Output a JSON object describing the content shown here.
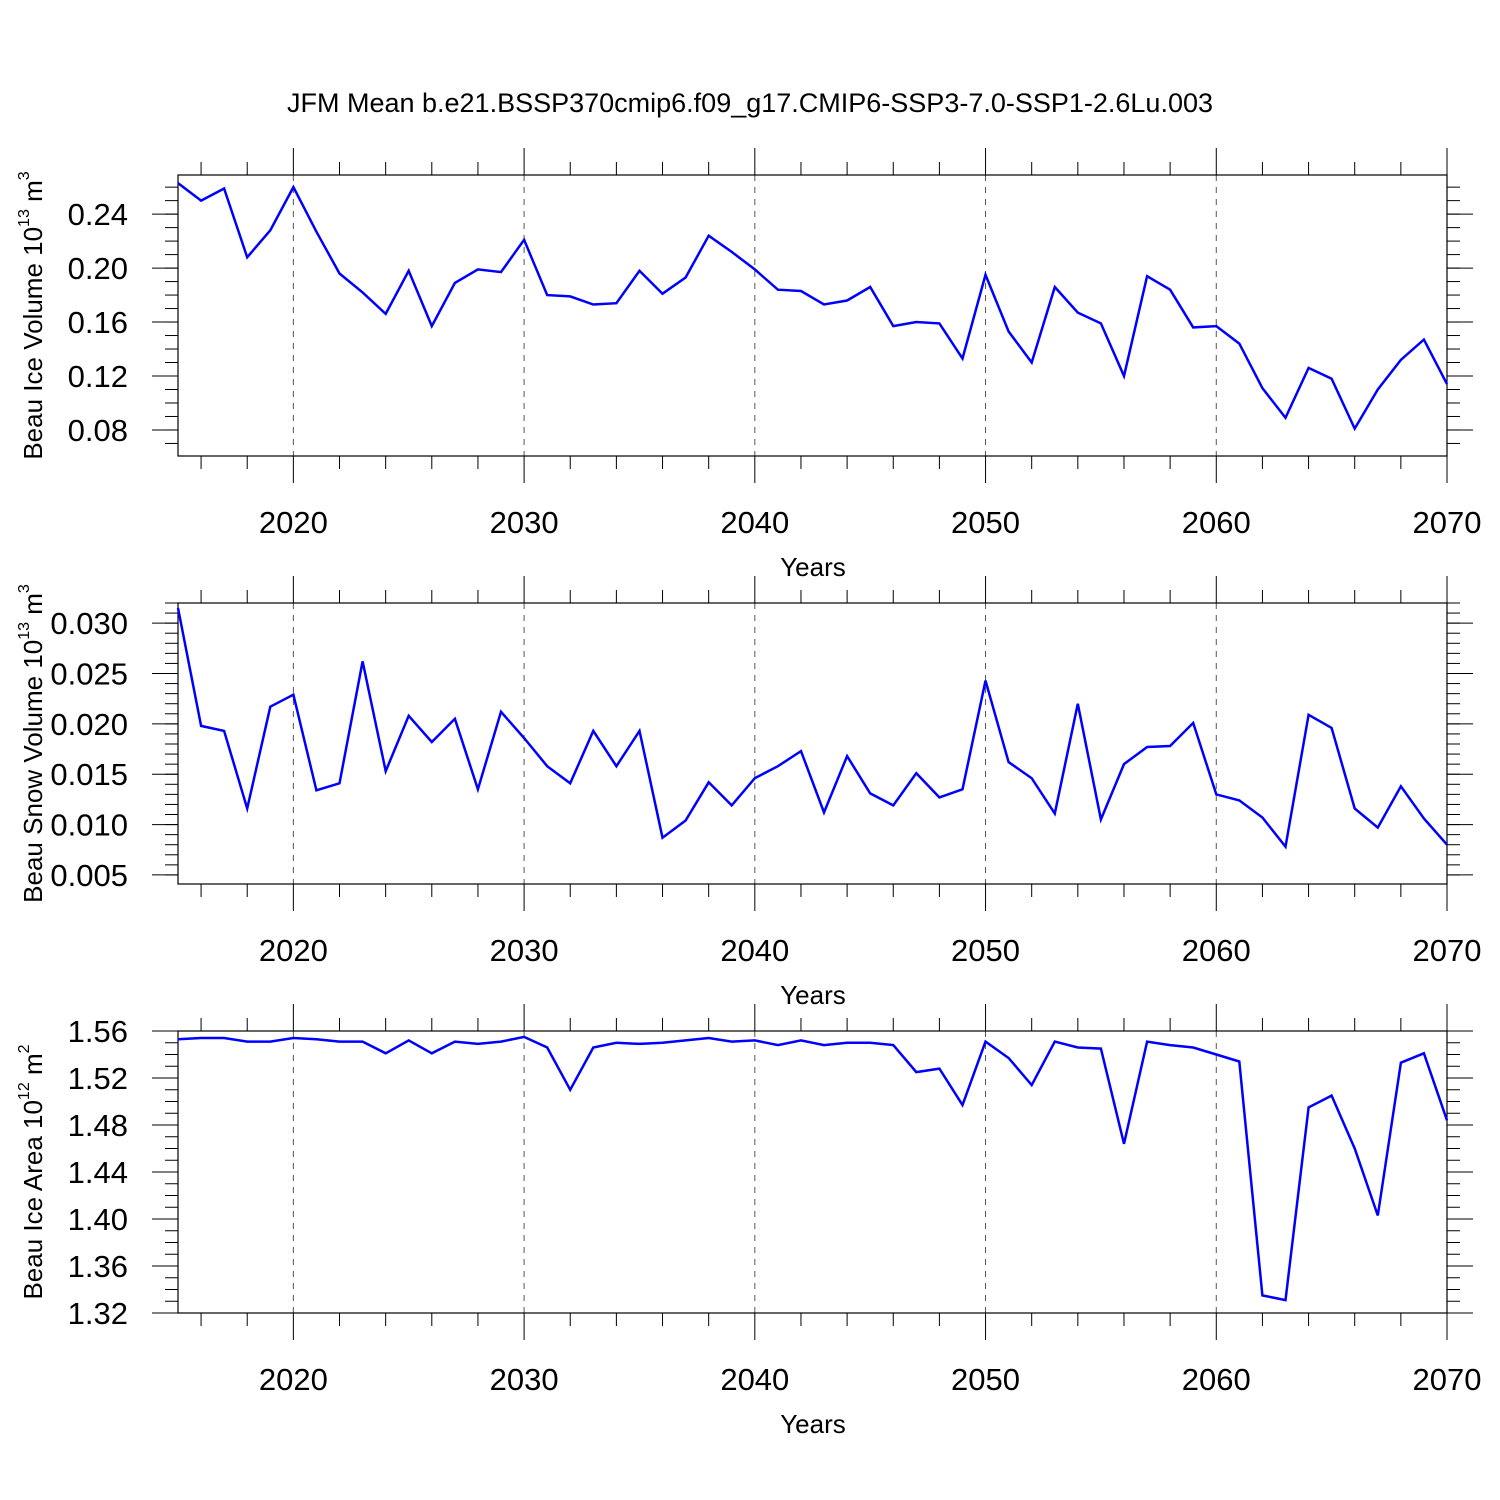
{
  "title": "JFM Mean b.e21.BSSP370cmip6.f09_g17.CMIP6-SSP3-7.0-SSP1-2.6Lu.003",
  "line_color": "#0000ff",
  "chart_data": [
    {
      "type": "line",
      "ylabel": "Beau Ice Volume 10",
      "ylabel_sup": "13",
      "ylabel_unit": " m",
      "ylabel_unit_sup": "3",
      "xlabel": "Years",
      "xlim": [
        2015,
        2070
      ],
      "ylim": [
        0.0607,
        0.269
      ],
      "xticks": [
        "2020",
        "2030",
        "2040",
        "2050",
        "2060",
        "2070"
      ],
      "yticks": [
        "0.08",
        "0.12",
        "0.16",
        "0.20",
        "0.24"
      ],
      "ytick_values": [
        0.08,
        0.12,
        0.16,
        0.2,
        0.24
      ],
      "yminor_step": 0.01,
      "grid": "dashed vertical at major x ticks",
      "x_start": 2015,
      "values": [
        0.263,
        0.25,
        0.259,
        0.208,
        0.228,
        0.26,
        0.227,
        0.196,
        0.182,
        0.166,
        0.198,
        0.157,
        0.189,
        0.199,
        0.197,
        0.221,
        0.18,
        0.179,
        0.173,
        0.174,
        0.198,
        0.181,
        0.193,
        0.224,
        0.212,
        0.199,
        0.184,
        0.183,
        0.173,
        0.176,
        0.186,
        0.157,
        0.16,
        0.159,
        0.133,
        0.195,
        0.153,
        0.13,
        0.186,
        0.167,
        0.159,
        0.12,
        0.194,
        0.184,
        0.156,
        0.157,
        0.144,
        0.111,
        0.089,
        0.126,
        0.118,
        0.081,
        0.11,
        0.132,
        0.147,
        0.114
      ]
    },
    {
      "type": "line",
      "ylabel": "Beau Snow Volume 10",
      "ylabel_sup": "13",
      "ylabel_unit": " m",
      "ylabel_unit_sup": "3",
      "xlabel": "Years",
      "xlim": [
        2015,
        2070
      ],
      "ylim": [
        0.0041,
        0.032
      ],
      "xticks": [
        "2020",
        "2030",
        "2040",
        "2050",
        "2060",
        "2070"
      ],
      "yticks": [
        "0.005",
        "0.010",
        "0.015",
        "0.020",
        "0.025",
        "0.030"
      ],
      "ytick_values": [
        0.005,
        0.01,
        0.015,
        0.02,
        0.025,
        0.03
      ],
      "yminor_step": 0.001,
      "grid": "dashed vertical at major x ticks",
      "x_start": 2015,
      "values": [
        0.0315,
        0.0198,
        0.0193,
        0.0116,
        0.0217,
        0.0229,
        0.0134,
        0.0141,
        0.0262,
        0.0153,
        0.0208,
        0.0182,
        0.0205,
        0.0135,
        0.0212,
        0.0186,
        0.0158,
        0.0141,
        0.0193,
        0.0158,
        0.0193,
        0.0087,
        0.0104,
        0.0142,
        0.0119,
        0.0146,
        0.0158,
        0.0173,
        0.0112,
        0.0168,
        0.0131,
        0.0119,
        0.0151,
        0.0127,
        0.0135,
        0.0243,
        0.0162,
        0.0146,
        0.0111,
        0.022,
        0.0105,
        0.016,
        0.0177,
        0.0178,
        0.0201,
        0.013,
        0.0124,
        0.0107,
        0.0078,
        0.0209,
        0.0196,
        0.0116,
        0.0097,
        0.0138,
        0.0106,
        0.008
      ]
    },
    {
      "type": "line",
      "ylabel": "Beau Ice Area 10",
      "ylabel_sup": "12",
      "ylabel_unit": " m",
      "ylabel_unit_sup": "2",
      "xlabel": "Years",
      "xlim": [
        2015,
        2070
      ],
      "ylim": [
        1.32,
        1.56
      ],
      "xticks": [
        "2020",
        "2030",
        "2040",
        "2050",
        "2060",
        "2070"
      ],
      "yticks": [
        "1.32",
        "1.36",
        "1.40",
        "1.44",
        "1.48",
        "1.52",
        "1.56"
      ],
      "ytick_values": [
        1.32,
        1.36,
        1.4,
        1.44,
        1.48,
        1.52,
        1.56
      ],
      "yminor_step": 0.01,
      "grid": "dashed vertical at major x ticks",
      "x_start": 2015,
      "values": [
        1.553,
        1.554,
        1.554,
        1.551,
        1.551,
        1.554,
        1.553,
        1.551,
        1.551,
        1.541,
        1.552,
        1.541,
        1.551,
        1.549,
        1.551,
        1.555,
        1.546,
        1.51,
        1.546,
        1.55,
        1.549,
        1.55,
        1.552,
        1.554,
        1.551,
        1.552,
        1.548,
        1.552,
        1.548,
        1.55,
        1.55,
        1.548,
        1.525,
        1.528,
        1.497,
        1.551,
        1.537,
        1.514,
        1.551,
        1.546,
        1.545,
        1.464,
        1.551,
        1.548,
        1.546,
        1.54,
        1.534,
        1.335,
        1.331,
        1.495,
        1.505,
        1.46,
        1.403,
        1.533,
        1.541,
        1.484
      ]
    }
  ]
}
